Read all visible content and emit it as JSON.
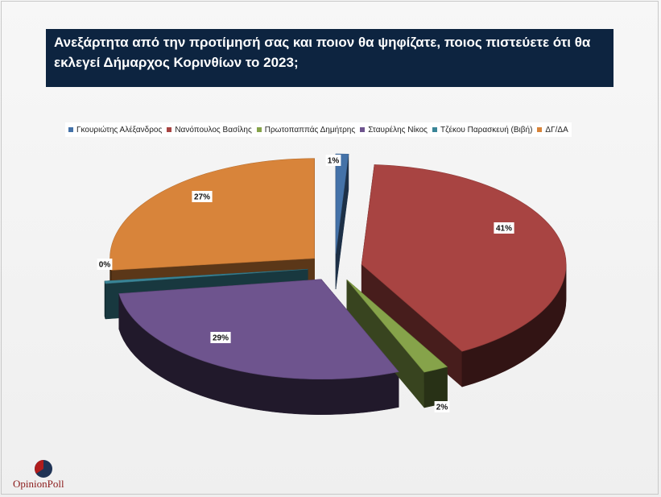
{
  "chart_data": {
    "type": "pie",
    "title": "Ανεξάρτητα από την προτίμησή σας και ποιον θα ψηφίζατε, ποιος πιστεύετε ότι θα εκλεγεί Δήμαρχος Κορινθίων το 2023;",
    "legend_position": "top",
    "slices": [
      {
        "name": "Γκουριώτης Αλέξανδρος",
        "value": 1,
        "label": "1%",
        "color": "#4472a8"
      },
      {
        "name": "Νανόπουλος Βασίλης",
        "value": 41,
        "label": "41%",
        "color": "#a84442"
      },
      {
        "name": "Πρωτοπαππάς Δημήτρης",
        "value": 2,
        "label": "2%",
        "color": "#86a34a"
      },
      {
        "name": "Σταυρέλης Νίκος",
        "value": 29,
        "label": "29%",
        "color": "#6e548e"
      },
      {
        "name": "Τζέκου Παρασκευή (Βιβή)",
        "value": 0.4,
        "label": "0%",
        "color": "#3a8597"
      },
      {
        "name": "ΔΓ/ΔΑ",
        "value": 27,
        "label": "27%",
        "color": "#d8843a"
      }
    ]
  },
  "logo": {
    "text": "OpinionPoll"
  }
}
